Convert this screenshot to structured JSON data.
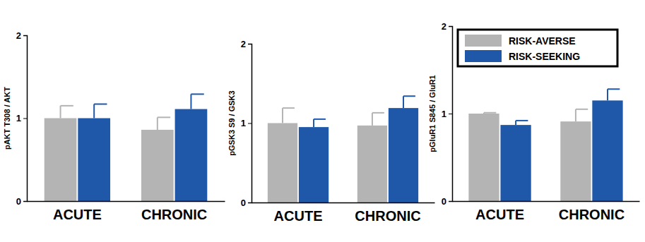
{
  "chart_data": [
    {
      "type": "bar",
      "y_label": "pAKT T308 / AKT",
      "categories": [
        "ACUTE",
        "CHRONIC"
      ],
      "series": [
        {
          "color": "#b4b4b4",
          "values": [
            1.0,
            0.86
          ],
          "errors": [
            0.15,
            0.15
          ]
        },
        {
          "color": "#1f58a8",
          "values": [
            1.0,
            1.11
          ],
          "errors": [
            0.17,
            0.18
          ]
        }
      ],
      "ylim": [
        0,
        2
      ],
      "yticks": [
        0,
        1,
        2
      ]
    },
    {
      "type": "bar",
      "y_label": "pGSK3 S9 / GSK3",
      "categories": [
        "ACUTE",
        "CHRONIC"
      ],
      "series": [
        {
          "color": "#b4b4b4",
          "values": [
            1.0,
            0.97
          ],
          "errors": [
            0.19,
            0.16
          ]
        },
        {
          "color": "#1f58a8",
          "values": [
            0.95,
            1.19
          ],
          "errors": [
            0.1,
            0.15
          ]
        }
      ],
      "ylim": [
        0,
        2
      ],
      "yticks": [
        0,
        1,
        2
      ]
    },
    {
      "type": "bar",
      "y_label": "pGluR1 S845 / GluR1",
      "categories": [
        "ACUTE",
        "CHRONIC"
      ],
      "series": [
        {
          "name": "RISK-AVERSE",
          "color": "#b4b4b4",
          "values": [
            1.0,
            0.91
          ],
          "errors": [
            0.01,
            0.14
          ]
        },
        {
          "name": "RISK-SEEKING",
          "color": "#1f58a8",
          "values": [
            0.87,
            1.15
          ],
          "errors": [
            0.05,
            0.13
          ]
        }
      ],
      "ylim": [
        0,
        2
      ],
      "yticks": [
        0,
        1,
        2
      ],
      "legend": "top-left"
    }
  ]
}
